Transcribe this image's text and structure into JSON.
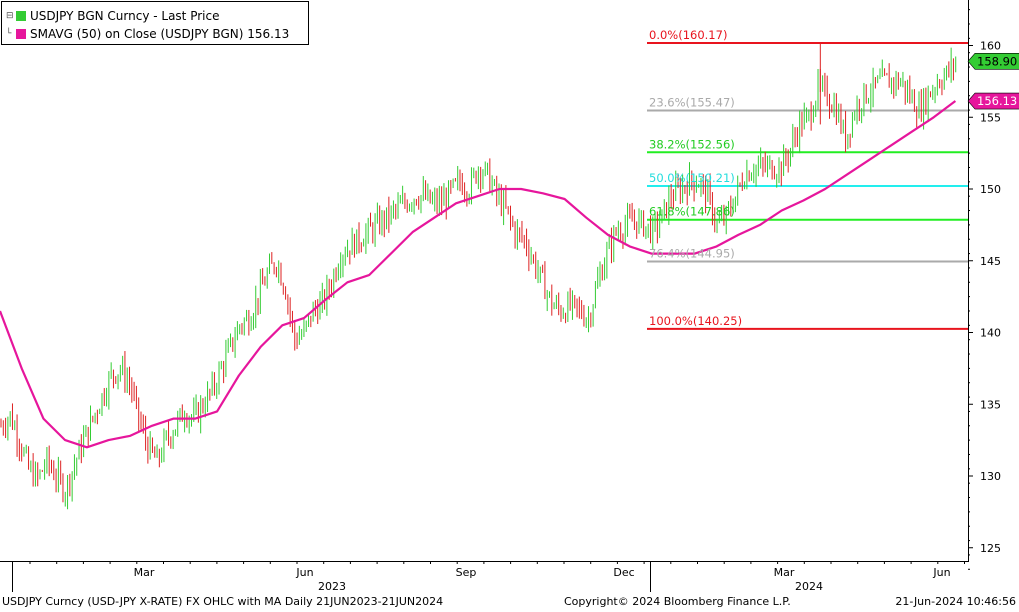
{
  "legend": {
    "line1": {
      "label": "USDJPY BGN Curncy - Last Price",
      "color": "#33cc33"
    },
    "line2": {
      "label": "SMAVG (50)  on Close (USDJPY BGN) 156.13",
      "color": "#e6169c"
    }
  },
  "footer": {
    "left": "USDJPY Curncy (USD-JPY X-RATE) FX OHLC with MA  Daily 21JUN2023-21JUN2024",
    "center": "Copyright© 2024 Bloomberg Finance L.P.",
    "right": "21-Jun-2024 10:46:56"
  },
  "chart_data": {
    "type": "line",
    "y_axis": {
      "ticks": [
        125,
        130,
        135,
        140,
        145,
        150,
        155,
        160
      ],
      "range": [
        123.5,
        163
      ]
    },
    "x_axis": {
      "month_labels": [
        "Mar",
        "Jun",
        "Sep",
        "Dec",
        "Mar",
        "Jun"
      ],
      "year_labels": [
        "2023",
        "2024"
      ]
    },
    "last_price_tag": {
      "text": "158.90",
      "value": 158.9,
      "color": "#33cc33"
    },
    "sma_tag": {
      "text": "156.13",
      "value": 156.13,
      "color": "#e6169c"
    },
    "fibonacci_levels": [
      {
        "label": "0.0%(160.17)",
        "value": 160.17,
        "color": "#e8141e",
        "text_color": "#e8141e"
      },
      {
        "label": "23.6%(155.47)",
        "value": 155.47,
        "color": "#aaaaaa",
        "text_color": "#aaaaaa"
      },
      {
        "label": "38.2%(152.56)",
        "value": 152.56,
        "color": "#22ee22",
        "text_color": "#22cc22"
      },
      {
        "label": "50.0%(150.21)",
        "value": 150.21,
        "color": "#22eeee",
        "text_color": "#22dddd"
      },
      {
        "label": "61.8%(147.86)",
        "value": 147.86,
        "color": "#22ee22",
        "text_color": "#22cc22"
      },
      {
        "label": "76.4%(144.95)",
        "value": 144.95,
        "color": "#aaaaaa",
        "text_color": "#aaaaaa"
      },
      {
        "label": "100.0%(140.25)",
        "value": 140.25,
        "color": "#e8141e",
        "text_color": "#e8141e"
      }
    ],
    "price_series": {
      "name": "USDJPY BGN Curncy - Last Price",
      "color_up": "#33cc33",
      "color_down": "#dd2222",
      "knots": [
        [
          0,
          133.5
        ],
        [
          4,
          134.2
        ],
        [
          8,
          132.5
        ],
        [
          12,
          130.5
        ],
        [
          16,
          129.8
        ],
        [
          20,
          131.0
        ],
        [
          24,
          130.0
        ],
        [
          28,
          129.0
        ],
        [
          32,
          130.8
        ],
        [
          36,
          132.5
        ],
        [
          40,
          134.0
        ],
        [
          44,
          135.5
        ],
        [
          48,
          137.0
        ],
        [
          52,
          137.5
        ],
        [
          56,
          136.5
        ],
        [
          60,
          134.0
        ],
        [
          64,
          132.0
        ],
        [
          68,
          131.0
        ],
        [
          72,
          132.5
        ],
        [
          76,
          133.5
        ],
        [
          80,
          134.5
        ],
        [
          84,
          134.0
        ],
        [
          88,
          135.0
        ],
        [
          92,
          136.0
        ],
        [
          96,
          137.5
        ],
        [
          100,
          139.0
        ],
        [
          104,
          140.5
        ],
        [
          108,
          141.0
        ],
        [
          112,
          142.5
        ],
        [
          116,
          144.0
        ],
        [
          120,
          145.0
        ],
        [
          124,
          143.0
        ],
        [
          128,
          139.5
        ],
        [
          132,
          140.0
        ],
        [
          136,
          141.5
        ],
        [
          140,
          142.0
        ],
        [
          144,
          143.5
        ],
        [
          148,
          145.5
        ],
        [
          152,
          146.0
        ],
        [
          156,
          146.5
        ],
        [
          160,
          147.0
        ],
        [
          164,
          147.5
        ],
        [
          168,
          148.0
        ],
        [
          172,
          148.5
        ],
        [
          176,
          149.0
        ],
        [
          180,
          149.5
        ],
        [
          184,
          149.5
        ],
        [
          188,
          149.0
        ],
        [
          192,
          149.0
        ],
        [
          196,
          149.8
        ],
        [
          200,
          150.5
        ],
        [
          204,
          150.0
        ],
        [
          208,
          151.5
        ],
        [
          212,
          151.0
        ],
        [
          216,
          149.5
        ],
        [
          220,
          148.5
        ],
        [
          224,
          147.0
        ],
        [
          228,
          146.5
        ],
        [
          232,
          145.0
        ],
        [
          236,
          143.5
        ],
        [
          240,
          142.0
        ],
        [
          244,
          141.5
        ],
        [
          248,
          141.8
        ],
        [
          252,
          141.5
        ],
        [
          256,
          141.0
        ],
        [
          260,
          143.5
        ],
        [
          264,
          145.5
        ],
        [
          268,
          147.0
        ],
        [
          272,
          147.5
        ],
        [
          276,
          147.8
        ],
        [
          280,
          147.5
        ],
        [
          284,
          147.0
        ],
        [
          288,
          148.0
        ],
        [
          292,
          149.5
        ],
        [
          296,
          150.0
        ],
        [
          300,
          150.5
        ],
        [
          304,
          150.5
        ],
        [
          308,
          149.5
        ],
        [
          312,
          147.5
        ],
        [
          316,
          148.0
        ],
        [
          320,
          149.5
        ],
        [
          324,
          151.0
        ],
        [
          328,
          151.5
        ],
        [
          332,
          151.5
        ],
        [
          336,
          151.5
        ],
        [
          340,
          151.5
        ],
        [
          344,
          152.8
        ],
        [
          348,
          154.5
        ],
        [
          352,
          155.0
        ],
        [
          356,
          157.0
        ],
        [
          360,
          156.5
        ],
        [
          364,
          155.5
        ],
        [
          368,
          153.5
        ],
        [
          372,
          155.5
        ],
        [
          376,
          156.5
        ],
        [
          380,
          157.0
        ],
        [
          384,
          157.5
        ],
        [
          388,
          157.5
        ],
        [
          392,
          157.5
        ],
        [
          396,
          156.5
        ],
        [
          400,
          155.5
        ],
        [
          404,
          156.5
        ],
        [
          408,
          157.5
        ],
        [
          412,
          158.0
        ],
        [
          416,
          158.9
        ]
      ]
    },
    "sma_series": {
      "name": "SMAVG (50)  on Close (USDJPY BGN) 156.13",
      "color": "#e6169c",
      "knots": [
        [
          0,
          141.5
        ],
        [
          20,
          137.5
        ],
        [
          40,
          134.0
        ],
        [
          60,
          132.5
        ],
        [
          80,
          132.0
        ],
        [
          100,
          132.5
        ],
        [
          120,
          132.8
        ],
        [
          140,
          133.5
        ],
        [
          160,
          134.0
        ],
        [
          180,
          134.0
        ],
        [
          200,
          134.5
        ],
        [
          220,
          137.0
        ],
        [
          240,
          139.0
        ],
        [
          260,
          140.5
        ],
        [
          280,
          141.0
        ],
        [
          300,
          142.3
        ],
        [
          320,
          143.5
        ],
        [
          340,
          144.0
        ],
        [
          360,
          145.5
        ],
        [
          380,
          147.0
        ],
        [
          400,
          148.0
        ],
        [
          420,
          149.0
        ],
        [
          440,
          149.5
        ],
        [
          460,
          150.0
        ],
        [
          480,
          150.0
        ],
        [
          500,
          149.7
        ],
        [
          520,
          149.3
        ],
        [
          540,
          148.0
        ],
        [
          560,
          146.8
        ],
        [
          580,
          146.0
        ],
        [
          600,
          145.5
        ],
        [
          620,
          145.5
        ],
        [
          640,
          145.5
        ],
        [
          660,
          146.0
        ],
        [
          680,
          146.8
        ],
        [
          700,
          147.5
        ],
        [
          720,
          148.5
        ],
        [
          740,
          149.2
        ],
        [
          760,
          150.0
        ],
        [
          780,
          151.0
        ],
        [
          800,
          152.0
        ],
        [
          820,
          153.0
        ],
        [
          840,
          154.0
        ],
        [
          860,
          155.0
        ],
        [
          880,
          156.13
        ]
      ]
    }
  }
}
